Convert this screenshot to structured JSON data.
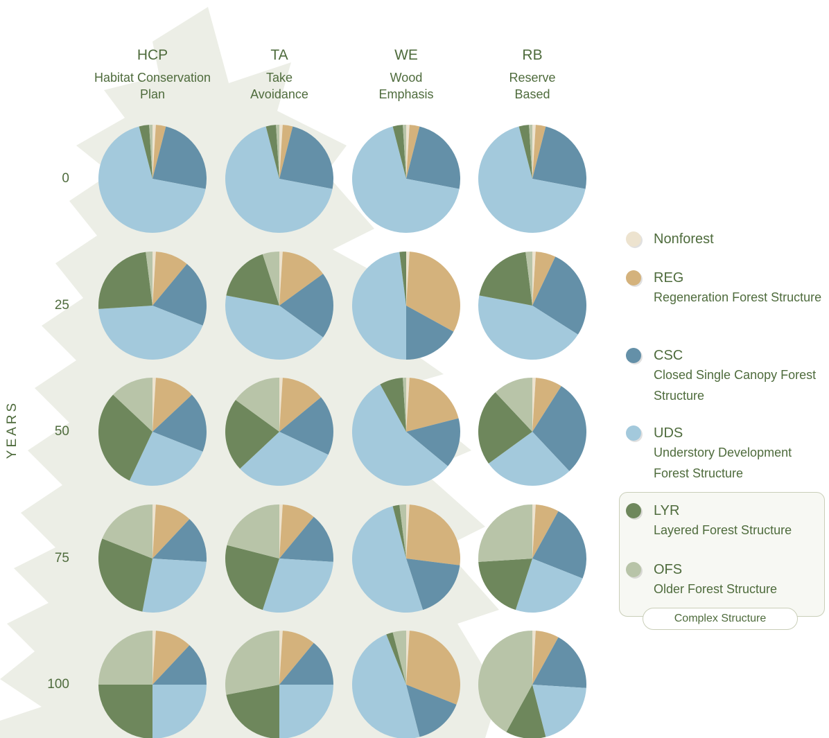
{
  "chart_data": {
    "type": "pie",
    "y_axis_label": "YEARS",
    "columns": [
      {
        "abbr": "HCP",
        "name": "Habitat Conservation Plan"
      },
      {
        "abbr": "TA",
        "name": "Take Avoidance"
      },
      {
        "abbr": "WE",
        "name": "Wood Emphasis"
      },
      {
        "abbr": "RB",
        "name": "Reserve Based"
      }
    ],
    "rows": [
      0,
      25,
      50,
      75,
      100
    ],
    "series": [
      {
        "name": "Nonforest",
        "color": "#ede3cf"
      },
      {
        "name": "REG",
        "description": "Regeneration Forest Structure",
        "color": "#d4b27c"
      },
      {
        "name": "CSC",
        "description": "Closed Single Canopy Forest Structure",
        "color": "#6490a8"
      },
      {
        "name": "UDS",
        "description": "Understory Development Forest Structure",
        "color": "#a3c9dc"
      },
      {
        "name": "LYR",
        "description": "Layered Forest Structure",
        "color": "#6e875c"
      },
      {
        "name": "OFS",
        "description": "Older Forest Structure",
        "color": "#b8c4a8"
      }
    ],
    "group_label": "Complex Structure",
    "values": [
      [
        [
          1,
          3,
          24,
          68,
          3,
          1
        ],
        [
          1,
          3,
          24,
          68,
          3,
          1
        ],
        [
          1,
          3,
          24,
          68,
          3,
          1
        ],
        [
          1,
          3,
          24,
          68,
          3,
          1
        ]
      ],
      [
        [
          1,
          10,
          20,
          43,
          24,
          2
        ],
        [
          1,
          14,
          20,
          43,
          17,
          5
        ],
        [
          1,
          32,
          17,
          48,
          2,
          0
        ],
        [
          1,
          6,
          27,
          44,
          20,
          2
        ]
      ],
      [
        [
          1,
          12,
          18,
          26,
          30,
          13
        ],
        [
          1,
          13,
          18,
          31,
          22,
          15
        ],
        [
          1,
          20,
          15,
          56,
          7,
          1
        ],
        [
          1,
          8,
          29,
          27,
          23,
          12
        ]
      ],
      [
        [
          1,
          11,
          14,
          27,
          28,
          19
        ],
        [
          1,
          10,
          15,
          29,
          24,
          21
        ],
        [
          1,
          26,
          18,
          51,
          2,
          2
        ],
        [
          1,
          7,
          23,
          24,
          19,
          26
        ]
      ],
      [
        [
          1,
          11,
          13,
          25,
          25,
          25
        ],
        [
          1,
          10,
          14,
          25,
          22,
          28
        ],
        [
          1,
          30,
          15,
          48,
          2,
          4
        ],
        [
          1,
          7,
          18,
          20,
          12,
          42
        ]
      ]
    ]
  }
}
